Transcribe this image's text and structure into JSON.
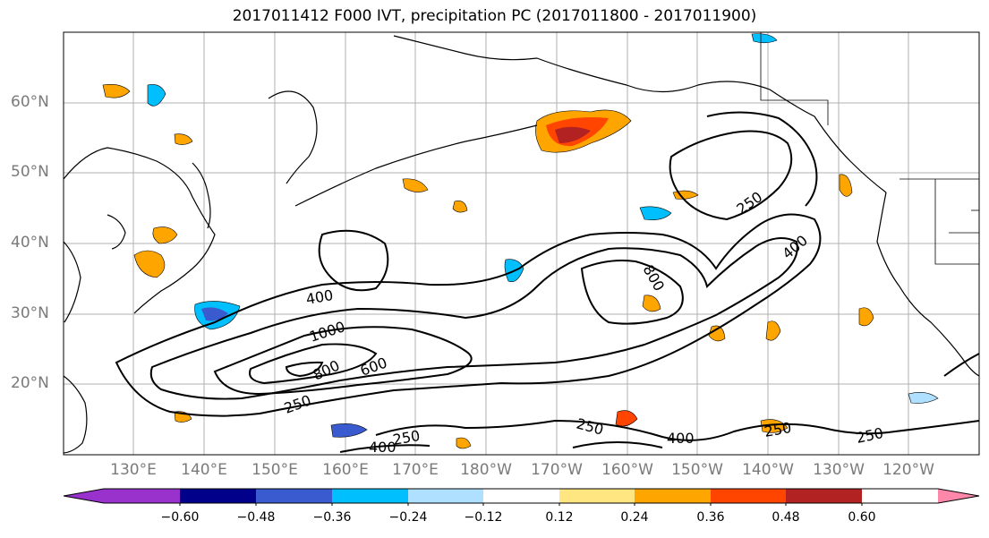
{
  "title": "2017011412 F000 IVT, precipitation PC (2017011800 - 2017011900)",
  "lat_labels": [
    "60°N",
    "50°N",
    "40°N",
    "30°N",
    "20°N"
  ],
  "lon_labels": [
    "130°E",
    "140°E",
    "150°E",
    "160°E",
    "170°E",
    "180°W",
    "170°W",
    "160°W",
    "150°W",
    "140°W",
    "130°W",
    "120°W"
  ],
  "contour_labels": [
    "400",
    "1000",
    "800",
    "600",
    "250",
    "250",
    "800",
    "400",
    "400",
    "250",
    "250",
    "250",
    "400",
    "250"
  ],
  "colorbar": {
    "ticks": [
      "−0.60",
      "−0.48",
      "−0.36",
      "−0.24",
      "−0.12",
      "0.12",
      "0.24",
      "0.36",
      "0.48",
      "0.60"
    ],
    "colors": [
      "#9932cc",
      "#00008b",
      "#3a5bd0",
      "#00bfff",
      "#b0e0ff",
      "#ffffff",
      "#ffe680",
      "#ffa500",
      "#ff4500",
      "#b22222",
      "#ff88aa"
    ]
  },
  "colors": {
    "contour": "#000000",
    "coast": "#000000",
    "grid": "#b0b0b0"
  }
}
